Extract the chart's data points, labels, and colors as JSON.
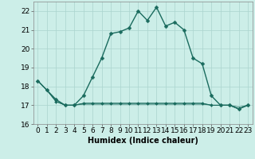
{
  "xlabel": "Humidex (Indice chaleur)",
  "background_color": "#cceee8",
  "grid_color": "#aad4ce",
  "line_color": "#1a6b5e",
  "x_values": [
    0,
    1,
    2,
    3,
    4,
    5,
    6,
    7,
    8,
    9,
    10,
    11,
    12,
    13,
    14,
    15,
    16,
    17,
    18,
    19,
    20,
    21,
    22,
    23
  ],
  "line1_y": [
    18.3,
    17.8,
    17.3,
    17.0,
    17.0,
    17.5,
    18.5,
    19.5,
    20.8,
    20.9,
    21.1,
    22.0,
    21.5,
    22.2,
    21.2,
    21.4,
    21.0,
    19.5,
    19.2,
    17.5,
    17.0,
    17.0,
    16.8,
    17.0
  ],
  "line2_y": [
    18.3,
    17.8,
    17.2,
    17.0,
    17.0,
    17.1,
    17.1,
    17.1,
    17.1,
    17.1,
    17.1,
    17.1,
    17.1,
    17.1,
    17.1,
    17.1,
    17.1,
    17.1,
    17.1,
    17.0,
    17.0,
    17.0,
    16.8,
    17.0
  ],
  "line3_y": [
    18.3,
    17.8,
    17.2,
    17.0,
    17.0,
    17.1,
    17.1,
    17.1,
    17.1,
    17.1,
    17.1,
    17.1,
    17.1,
    17.1,
    17.1,
    17.1,
    17.1,
    17.1,
    17.1,
    17.0,
    17.0,
    17.0,
    16.9,
    17.0
  ],
  "line4_y": [
    18.3,
    17.8,
    17.2,
    17.0,
    17.0,
    17.05,
    17.05,
    17.05,
    17.05,
    17.05,
    17.05,
    17.05,
    17.05,
    17.05,
    17.05,
    17.05,
    17.05,
    17.05,
    17.05,
    17.0,
    17.0,
    17.0,
    16.8,
    17.0
  ],
  "ylim": [
    16,
    22.5
  ],
  "xlim": [
    -0.5,
    23.5
  ],
  "yticks": [
    16,
    17,
    18,
    19,
    20,
    21,
    22
  ],
  "xticks": [
    0,
    1,
    2,
    3,
    4,
    5,
    6,
    7,
    8,
    9,
    10,
    11,
    12,
    13,
    14,
    15,
    16,
    17,
    18,
    19,
    20,
    21,
    22,
    23
  ],
  "markersize": 2.5,
  "linewidth": 1.0,
  "label_fontsize": 7,
  "tick_fontsize": 6.5
}
